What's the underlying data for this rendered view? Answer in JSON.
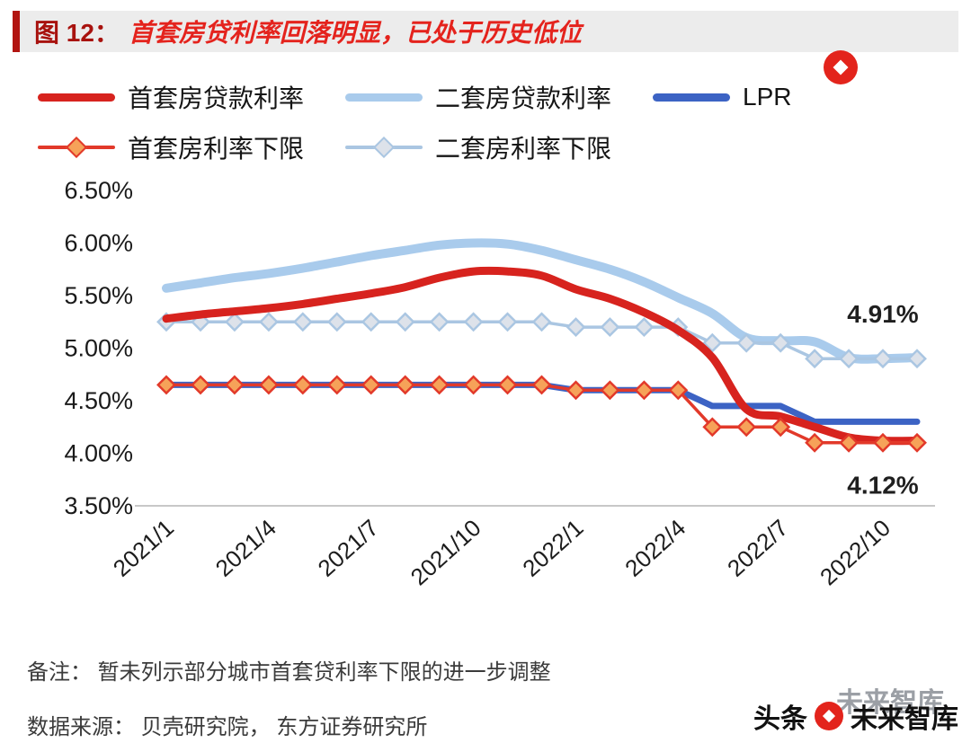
{
  "title": {
    "prefix": "图 12：",
    "text": "首套房贷利率回落明显，已处于历史低位"
  },
  "legend": [
    {
      "label": "首套房贷款利率",
      "series": "首套房贷款利率",
      "swatch": "line"
    },
    {
      "label": "二套房贷款利率",
      "series": "二套房贷款利率",
      "swatch": "line"
    },
    {
      "label": "LPR",
      "series": "LPR",
      "swatch": "line"
    },
    {
      "label": "首套房利率下限",
      "series": "首套房利率下限",
      "swatch": "line-diamond"
    },
    {
      "label": "二套房利率下限",
      "series": "二套房利率下限",
      "swatch": "line-diamond"
    }
  ],
  "chart_data": {
    "type": "line",
    "title": "首套房贷利率回落明显，已处于历史低位",
    "grid": false,
    "legend_position": "top-left",
    "ylim": [
      3.5,
      6.5
    ],
    "y_ticks": [
      {
        "value": 6.5,
        "label": "6.50%"
      },
      {
        "value": 6.0,
        "label": "6.00%"
      },
      {
        "value": 5.5,
        "label": "5.50%"
      },
      {
        "value": 5.0,
        "label": "5.00%"
      },
      {
        "value": 4.5,
        "label": "4.50%"
      },
      {
        "value": 4.0,
        "label": "4.00%"
      },
      {
        "value": 3.5,
        "label": "3.50%"
      }
    ],
    "x": [
      "2021/1",
      "2021/2",
      "2021/3",
      "2021/4",
      "2021/5",
      "2021/6",
      "2021/7",
      "2021/8",
      "2021/9",
      "2021/10",
      "2021/11",
      "2021/12",
      "2022/1",
      "2022/2",
      "2022/3",
      "2022/4",
      "2022/5",
      "2022/6",
      "2022/7",
      "2022/8",
      "2022/9",
      "2022/10",
      "2022/11"
    ],
    "x_tick_indices": [
      0,
      3,
      6,
      9,
      12,
      15,
      18,
      21
    ],
    "series": [
      {
        "name": "二套房贷款利率",
        "color": "#a9cbec",
        "width": 10,
        "smooth": true,
        "values": [
          5.57,
          5.62,
          5.67,
          5.71,
          5.76,
          5.82,
          5.88,
          5.93,
          5.98,
          6.0,
          5.99,
          5.93,
          5.84,
          5.75,
          5.63,
          5.48,
          5.33,
          5.1,
          5.07,
          5.06,
          4.91,
          4.9,
          4.91
        ]
      },
      {
        "name": "LPR",
        "color": "#3c63c4",
        "width": 7,
        "smooth": false,
        "values": [
          4.65,
          4.65,
          4.65,
          4.65,
          4.65,
          4.65,
          4.65,
          4.65,
          4.65,
          4.65,
          4.65,
          4.65,
          4.6,
          4.6,
          4.6,
          4.6,
          4.45,
          4.45,
          4.45,
          4.3,
          4.3,
          4.3,
          4.3
        ]
      },
      {
        "name": "二套房利率下限",
        "color": "#aac6e2",
        "width": 3.5,
        "smooth": false,
        "marker": "diamond",
        "marker_fill": "#dde2ea",
        "values": [
          5.25,
          5.25,
          5.25,
          5.25,
          5.25,
          5.25,
          5.25,
          5.25,
          5.25,
          5.25,
          5.25,
          5.25,
          5.2,
          5.2,
          5.2,
          5.2,
          5.05,
          5.05,
          5.05,
          4.9,
          4.9,
          4.9,
          4.9
        ]
      },
      {
        "name": "首套房贷款利率",
        "color": "#d7231e",
        "width": 9,
        "smooth": true,
        "values": [
          5.28,
          5.32,
          5.35,
          5.38,
          5.42,
          5.47,
          5.52,
          5.58,
          5.67,
          5.73,
          5.73,
          5.69,
          5.56,
          5.47,
          5.34,
          5.17,
          4.91,
          4.42,
          4.35,
          4.25,
          4.15,
          4.12,
          4.12
        ]
      },
      {
        "name": "首套房利率下限",
        "color": "#e2392a",
        "width": 3.5,
        "smooth": false,
        "marker": "diamond",
        "marker_fill": "#f6a259",
        "values": [
          4.65,
          4.65,
          4.65,
          4.65,
          4.65,
          4.65,
          4.65,
          4.65,
          4.65,
          4.65,
          4.65,
          4.65,
          4.6,
          4.6,
          4.6,
          4.6,
          4.25,
          4.25,
          4.25,
          4.1,
          4.1,
          4.1,
          4.1
        ]
      }
    ],
    "annotations": [
      {
        "text": "4.91%",
        "x_index": 21,
        "value": 5.33
      },
      {
        "text": "4.12%",
        "x_index": 21,
        "value": 3.7
      }
    ]
  },
  "notes": {
    "remark": "备注： 暂未列示部分城市首套贷利率下限的进一步调整",
    "source": "数据来源： 贝壳研究院， 东方证券研究所"
  },
  "watermark": {
    "brand": "头条",
    "name": "未来智库",
    "logo_icon": "weilai-zhiku-logo"
  }
}
